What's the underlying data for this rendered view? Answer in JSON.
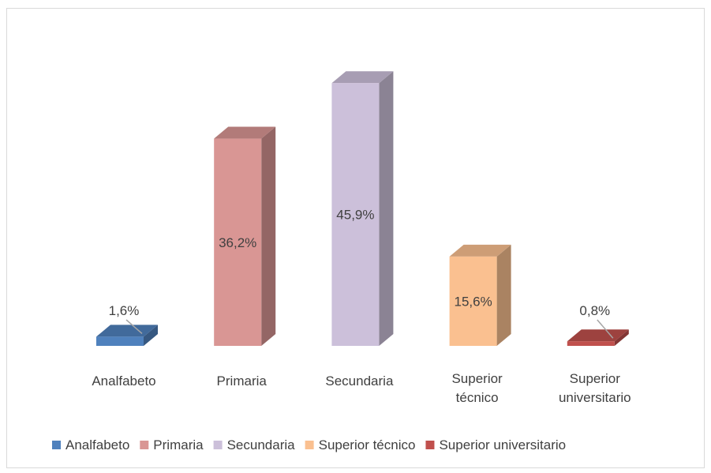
{
  "chart_data": {
    "type": "bar3d",
    "categories": [
      "Analfabeto",
      "Primaria",
      "Secundaria",
      "Superior técnico",
      "Superior universitario"
    ],
    "values": [
      1.6,
      36.2,
      45.9,
      15.6,
      0.8
    ],
    "value_labels": [
      "1,6%",
      "36,2%",
      "45,9%",
      "15,6%",
      "0,8%"
    ],
    "colors": [
      "#4f81bd",
      "#d99694",
      "#ccc0da",
      "#fac090",
      "#c0504d"
    ],
    "legend": "bottom"
  }
}
